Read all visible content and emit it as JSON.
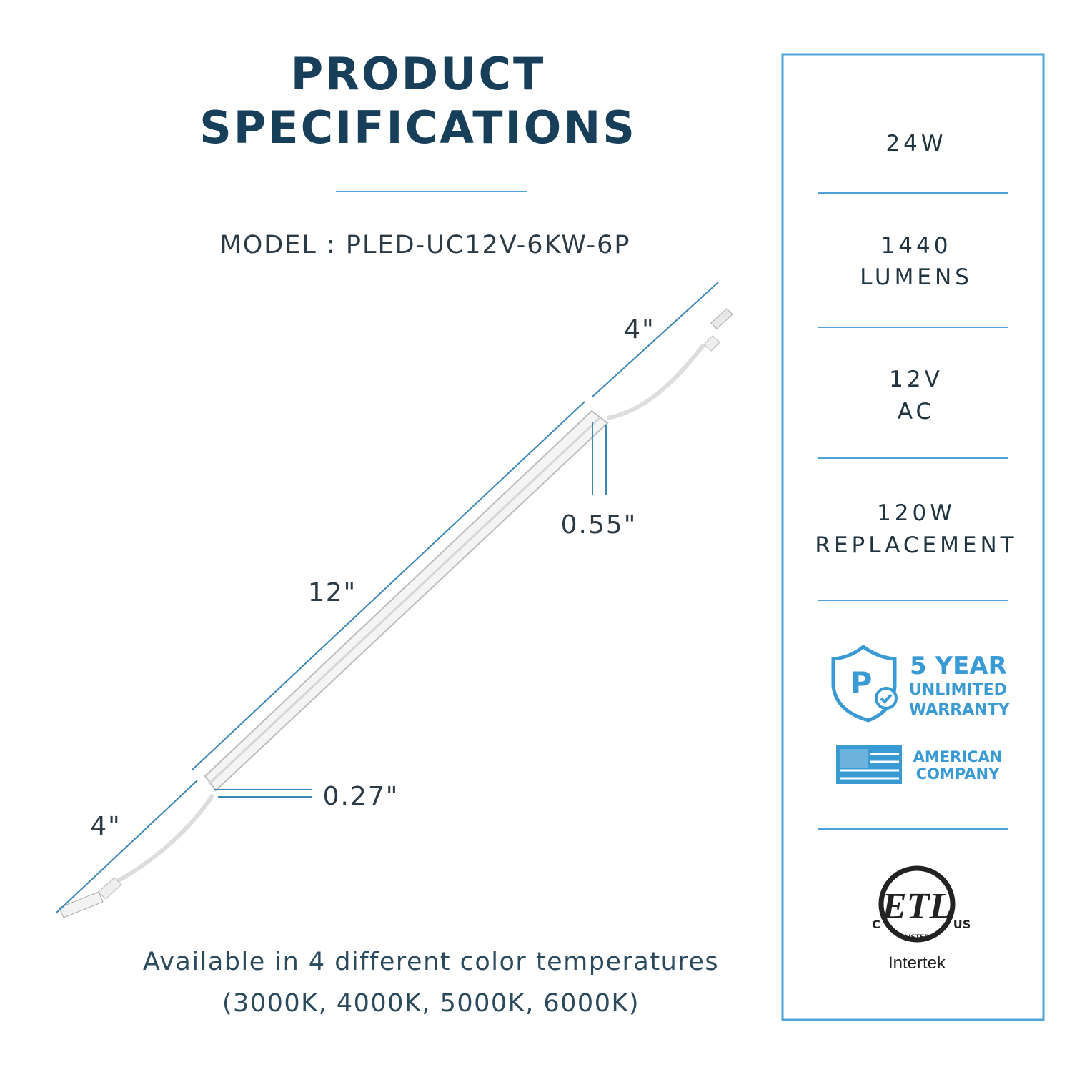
{
  "header": {
    "title": [
      "PRODUCT",
      "SPECIFICATIONS"
    ],
    "model": "MODEL : PLED-UC12V-6KW-6P"
  },
  "dimensions": {
    "cord_right": "4\"",
    "height": "0.55\"",
    "length": "12\"",
    "width": "0.27\"",
    "cord_left": "4\""
  },
  "footer": [
    "Available in 4 different color temperatures",
    "(3000K, 4000K, 5000K, 6000K)"
  ],
  "specs": [
    [
      "24W"
    ],
    [
      "1440",
      "LUMENS"
    ],
    [
      "12V",
      "AC"
    ],
    [
      "120W",
      "REPLACEMENT"
    ]
  ],
  "warranty": {
    "icon": "P",
    "lines": [
      "5 YEAR",
      "UNLIMITED",
      "WARRANTY"
    ]
  },
  "company": [
    "AMERICAN",
    "COMPANY"
  ],
  "certification": {
    "mark": "ETL",
    "left": "C",
    "right": "US",
    "listed": "LISTED",
    "brand": "Intertek"
  }
}
